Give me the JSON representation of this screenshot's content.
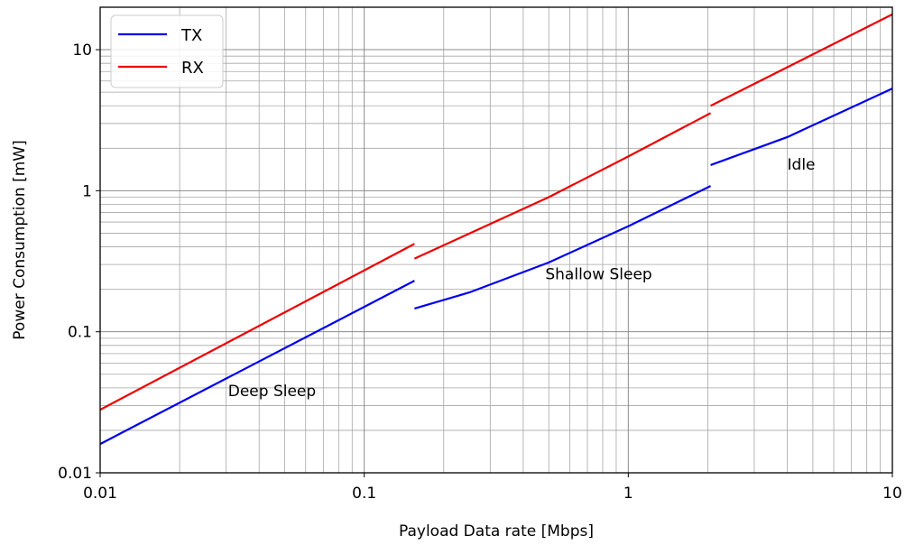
{
  "chart_data": {
    "type": "line",
    "xlabel": "Payload Data rate [Mbps]",
    "ylabel": "Power Consumption [mW]",
    "xscale": "log",
    "yscale": "log",
    "xlim": [
      0.01,
      10
    ],
    "ylim": [
      0.01,
      20
    ],
    "grid": "major and minor",
    "legend_position": "top-left",
    "x_ticks": [
      {
        "value": 0.01,
        "label": "0.01"
      },
      {
        "value": 0.1,
        "label": "0.1"
      },
      {
        "value": 1,
        "label": "1"
      },
      {
        "value": 10,
        "label": "10"
      }
    ],
    "y_ticks": [
      {
        "value": 0.01,
        "label": "0.01"
      },
      {
        "value": 0.1,
        "label": "0.1"
      },
      {
        "value": 1,
        "label": "1"
      },
      {
        "value": 10,
        "label": "10"
      }
    ],
    "series": [
      {
        "name": "TX",
        "color": "#0000ee",
        "segments": [
          [
            [
              0.01,
              0.016
            ],
            [
              0.155,
              0.23
            ]
          ],
          [
            [
              0.155,
              0.146
            ],
            [
              0.25,
              0.19
            ],
            [
              0.5,
              0.31
            ],
            [
              1,
              0.56
            ],
            [
              2.05,
              1.08
            ]
          ],
          [
            [
              2.05,
              1.52
            ],
            [
              4,
              2.4
            ],
            [
              10,
              5.3
            ]
          ]
        ]
      },
      {
        "name": "RX",
        "color": "#ee0000",
        "segments": [
          [
            [
              0.01,
              0.028
            ],
            [
              0.155,
              0.42
            ]
          ],
          [
            [
              0.155,
              0.33
            ],
            [
              0.5,
              0.9
            ],
            [
              1,
              1.75
            ],
            [
              2.05,
              3.55
            ]
          ],
          [
            [
              2.05,
              4.0
            ],
            [
              10,
              17.8
            ]
          ]
        ]
      }
    ],
    "annotations": [
      {
        "text": "Deep Sleep",
        "x": 0.0305,
        "y": 0.035
      },
      {
        "text": "Shallow Sleep",
        "x": 0.485,
        "y": 0.235
      },
      {
        "text": "Idle",
        "x": 4.0,
        "y": 1.41
      }
    ]
  }
}
